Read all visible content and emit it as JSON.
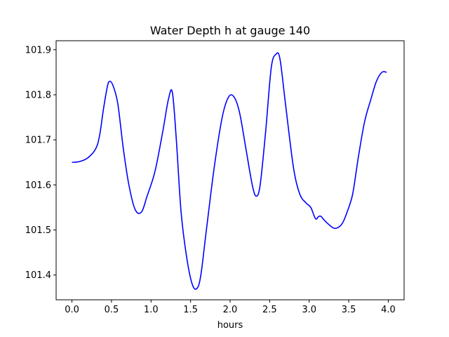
{
  "chart_data": {
    "type": "line",
    "title": "Water Depth h at gauge 140",
    "xlabel": "hours",
    "ylabel": "",
    "xlim": [
      -0.2,
      4.2
    ],
    "ylim": [
      101.345,
      101.92
    ],
    "xticks": [
      0.0,
      0.5,
      1.0,
      1.5,
      2.0,
      2.5,
      3.0,
      3.5,
      4.0
    ],
    "xtick_labels": [
      "0.0",
      "0.5",
      "1.0",
      "1.5",
      "2.0",
      "2.5",
      "3.0",
      "3.5",
      "4.0"
    ],
    "yticks": [
      101.4,
      101.5,
      101.6,
      101.7,
      101.8,
      101.9
    ],
    "ytick_labels": [
      "101.4",
      "101.5",
      "101.6",
      "101.7",
      "101.8",
      "101.9"
    ],
    "grid": false,
    "line_color": "#0000ff",
    "series": [
      {
        "x": [
          0.0,
          0.1,
          0.2,
          0.3,
          0.35,
          0.4,
          0.45,
          0.48,
          0.52,
          0.58,
          0.65,
          0.72,
          0.8,
          0.88,
          0.95,
          1.05,
          1.15,
          1.22,
          1.27,
          1.32,
          1.38,
          1.45,
          1.52,
          1.58,
          1.63,
          1.7,
          1.8,
          1.9,
          1.98,
          2.05,
          2.12,
          2.2,
          2.28,
          2.33,
          2.38,
          2.45,
          2.52,
          2.58,
          2.63,
          2.7,
          2.8,
          2.88,
          2.96,
          3.02,
          3.08,
          3.12,
          3.15,
          3.2,
          3.3,
          3.36,
          3.42,
          3.48,
          3.55,
          3.62,
          3.7,
          3.78,
          3.85,
          3.92,
          3.98
        ],
        "y": [
          101.65,
          101.652,
          101.66,
          101.68,
          101.71,
          101.77,
          101.82,
          101.83,
          101.82,
          101.78,
          101.68,
          101.6,
          101.545,
          101.54,
          101.575,
          101.63,
          101.72,
          101.79,
          101.805,
          101.7,
          101.54,
          101.44,
          101.38,
          101.37,
          101.4,
          101.5,
          101.64,
          101.75,
          101.795,
          101.795,
          101.76,
          101.68,
          101.6,
          101.575,
          101.6,
          101.72,
          101.86,
          101.89,
          101.88,
          101.78,
          101.64,
          101.58,
          101.56,
          101.55,
          101.525,
          101.53,
          101.53,
          101.52,
          101.505,
          101.505,
          101.515,
          101.54,
          101.58,
          101.66,
          101.74,
          101.79,
          101.83,
          101.85,
          101.85
        ]
      }
    ]
  }
}
